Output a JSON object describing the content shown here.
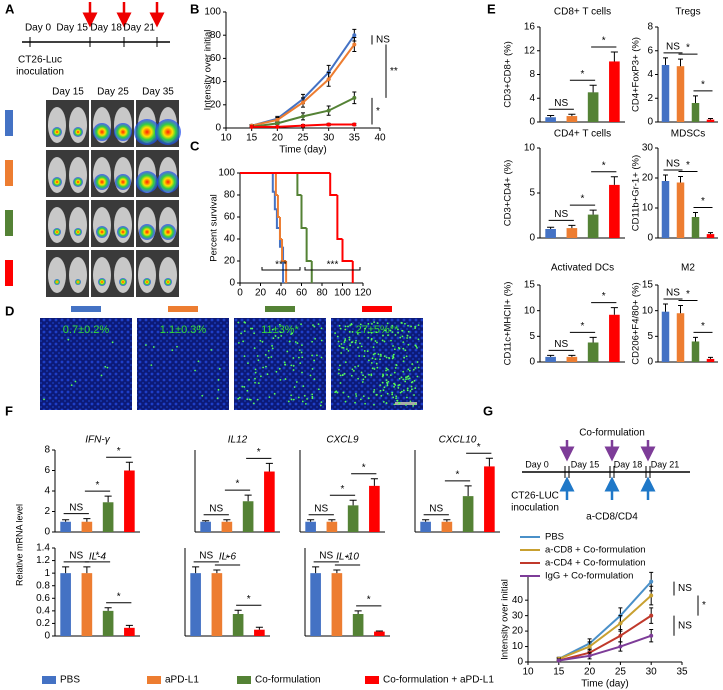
{
  "panel_labels": [
    "A",
    "B",
    "C",
    "D",
    "E",
    "F",
    "G"
  ],
  "timeline_a": {
    "days": [
      "Day 0",
      "Day 15",
      "Day 18",
      "Day 21"
    ],
    "event": [
      "CT26-Luc",
      "inoculation"
    ]
  },
  "imaging_days": [
    "Day 15",
    "Day 25",
    "Day 35"
  ],
  "staining_labels": [
    "0.7±0.2%",
    "1.1±0.3%",
    "11±3%*",
    "27±5%**"
  ],
  "legend": [
    {
      "name": "PBS",
      "color": "#4472c4"
    },
    {
      "name": "aPD-L1",
      "color": "#ed7d31"
    },
    {
      "name": "Co-formulation",
      "color": "#548235"
    },
    {
      "name": "Co-formulation + aPD-L1",
      "color": "#ff0000"
    }
  ],
  "timeline_g": {
    "treatment": "Co-formulation",
    "days": [
      "Day 0",
      "Day 15",
      "Day 18",
      "Day 21"
    ],
    "event": [
      "CT26-LUC",
      "inoculation"
    ],
    "depletion": "a-CD8/CD4"
  },
  "f_ylabel": "Relative mRNA level",
  "chart_data": [
    {
      "type": "line",
      "xlabel": "Time (day)",
      "ylabel": "Intensity over initial",
      "x": [
        15,
        20,
        25,
        30,
        35
      ],
      "xlim": [
        10,
        40
      ],
      "xticks": [
        10,
        15,
        20,
        25,
        30,
        35,
        40
      ],
      "ylim": [
        0,
        100
      ],
      "yticks": [
        0,
        20,
        40,
        60,
        80,
        100
      ],
      "series": [
        {
          "color": "#4472c4",
          "values": [
            2,
            8,
            25,
            48,
            80
          ],
          "errors": [
            1,
            2,
            4,
            6,
            5
          ]
        },
        {
          "color": "#ed7d31",
          "values": [
            2,
            7,
            22,
            42,
            72
          ],
          "errors": [
            1,
            2,
            4,
            6,
            6
          ]
        },
        {
          "color": "#548235",
          "values": [
            1,
            4,
            10,
            15,
            26
          ],
          "errors": [
            1,
            1,
            3,
            4,
            5
          ]
        },
        {
          "color": "#ff0000",
          "values": [
            1,
            1,
            2,
            3,
            3
          ],
          "errors": [
            0.5,
            0.5,
            1,
            1,
            1
          ]
        }
      ],
      "annotations": [
        "NS",
        "**",
        "*"
      ]
    },
    {
      "type": "step",
      "ylabel": "Percent survival",
      "xlim": [
        0,
        120
      ],
      "xticks": [
        0,
        20,
        40,
        60,
        80,
        100,
        120
      ],
      "ylim": [
        0,
        100
      ],
      "yticks": [
        0,
        20,
        40,
        60,
        80,
        100
      ],
      "series": [
        {
          "color": "#4472c4",
          "x": [
            0,
            32,
            34,
            36,
            39,
            42
          ],
          "values": [
            100,
            83,
            67,
            50,
            33,
            0
          ]
        },
        {
          "color": "#ed7d31",
          "x": [
            0,
            35,
            37,
            39,
            41,
            45
          ],
          "values": [
            100,
            80,
            60,
            40,
            20,
            0
          ]
        },
        {
          "color": "#548235",
          "x": [
            0,
            56,
            60,
            65,
            70
          ],
          "values": [
            100,
            80,
            50,
            20,
            0
          ]
        },
        {
          "color": "#ff0000",
          "x": [
            0,
            88,
            95,
            100,
            110
          ],
          "values": [
            100,
            80,
            40,
            20,
            0
          ]
        }
      ],
      "annotations": [
        "***",
        "***"
      ]
    },
    {
      "type": "bar",
      "title": "CD8+ T cells",
      "ylabel": "CD3+CD8+ (%)",
      "ylim": [
        0,
        16
      ],
      "yticks": [
        0,
        4,
        8,
        12,
        16
      ],
      "values": [
        0.8,
        1.0,
        5.0,
        10.2
      ],
      "errors": [
        0.3,
        0.3,
        1.2,
        1.6
      ],
      "annotations": [
        "NS",
        "*",
        "*"
      ]
    },
    {
      "type": "bar",
      "title": "Tregs",
      "ylabel": "CD4+FoxP3+ (%)",
      "ylim": [
        0,
        8
      ],
      "yticks": [
        0,
        2,
        4,
        6,
        8
      ],
      "values": [
        4.8,
        4.7,
        1.6,
        0.2
      ],
      "errors": [
        0.6,
        0.6,
        0.6,
        0.1
      ],
      "annotations": [
        "NS",
        "*",
        "*"
      ]
    },
    {
      "type": "bar",
      "title": "CD4+ T cells",
      "ylabel": "CD3+CD4+ (%)",
      "ylim": [
        0,
        10
      ],
      "yticks": [
        0,
        5,
        10
      ],
      "values": [
        1.0,
        1.1,
        2.6,
        5.9
      ],
      "errors": [
        0.2,
        0.3,
        0.5,
        0.9
      ],
      "annotations": [
        "NS",
        "*",
        "*"
      ]
    },
    {
      "type": "bar",
      "title": "MDSCs",
      "ylabel": "CD11b+Gr-1+ (%)",
      "ylim": [
        0,
        30
      ],
      "yticks": [
        0,
        10,
        20,
        30
      ],
      "values": [
        19,
        18.5,
        7,
        1.3
      ],
      "errors": [
        2,
        2,
        1.5,
        0.5
      ],
      "annotations": [
        "NS",
        "*",
        "*"
      ]
    },
    {
      "type": "bar",
      "title": "Activated DCs",
      "ylabel": "CD11c+MHCII+ (%)",
      "ylim": [
        0,
        15
      ],
      "yticks": [
        0,
        5,
        10,
        15
      ],
      "values": [
        1,
        1,
        3.8,
        9.2
      ],
      "errors": [
        0.3,
        0.3,
        1,
        1.4
      ],
      "annotations": [
        "NS",
        "*",
        "*"
      ]
    },
    {
      "type": "bar",
      "title": "M2",
      "ylabel": "CD206+F4/80+ (%)",
      "ylim": [
        0,
        15
      ],
      "yticks": [
        0,
        5,
        10,
        15
      ],
      "values": [
        9.8,
        9.5,
        4,
        0.6
      ],
      "errors": [
        1.5,
        1.5,
        0.8,
        0.3
      ],
      "annotations": [
        "NS",
        "*",
        "*"
      ]
    },
    {
      "type": "bar",
      "title": "IFN-γ",
      "ylim": [
        0,
        8
      ],
      "yticks": [
        0,
        2,
        4,
        6,
        8
      ],
      "values": [
        1,
        1,
        2.9,
        6
      ],
      "errors": [
        0.2,
        0.3,
        0.6,
        0.8
      ],
      "annotations": [
        "NS",
        "*",
        "*"
      ]
    },
    {
      "type": "bar",
      "title": "IL12",
      "ylim": [
        0,
        8
      ],
      "values": [
        1,
        1,
        3,
        5.9
      ],
      "errors": [
        0.1,
        0.2,
        0.6,
        0.8
      ],
      "annotations": [
        "NS",
        "*",
        "*"
      ]
    },
    {
      "type": "bar",
      "title": "CXCL9",
      "ylim": [
        0,
        8
      ],
      "values": [
        1,
        1,
        2.6,
        4.5
      ],
      "errors": [
        0.2,
        0.2,
        0.5,
        0.7
      ],
      "annotations": [
        "NS",
        "*",
        "*"
      ]
    },
    {
      "type": "bar",
      "title": "CXCL10",
      "ylim": [
        0,
        8
      ],
      "values": [
        1,
        1,
        3.5,
        6.4
      ],
      "errors": [
        0.2,
        0.2,
        1,
        0.8
      ],
      "annotations": [
        "NS",
        "*",
        "*"
      ]
    },
    {
      "type": "bar",
      "title": "IL-4",
      "ylim": [
        0,
        1.4
      ],
      "yticks": [
        0,
        0.2,
        0.4,
        0.6,
        0.8,
        1,
        1.2,
        1.4
      ],
      "values": [
        1,
        1,
        0.4,
        0.13
      ],
      "errors": [
        0.1,
        0.1,
        0.05,
        0.04
      ],
      "annotations": [
        "NS",
        "*",
        "*"
      ]
    },
    {
      "type": "bar",
      "title": "IL-6",
      "ylim": [
        0,
        1.4
      ],
      "values": [
        1,
        1,
        0.35,
        0.1
      ],
      "errors": [
        0.1,
        0.05,
        0.06,
        0.04
      ],
      "annotations": [
        "NS",
        "*",
        "*"
      ]
    },
    {
      "type": "bar",
      "title": "IL-10",
      "ylim": [
        0,
        1.4
      ],
      "values": [
        1,
        1,
        0.35,
        0.07
      ],
      "errors": [
        0.1,
        0.05,
        0.05,
        0.01
      ],
      "annotations": [
        "NS",
        "*",
        "*"
      ]
    },
    {
      "type": "line",
      "xlabel": "Time (day)",
      "ylabel": "Intensity over initial",
      "x": [
        15,
        20,
        25,
        30
      ],
      "xlim": [
        10,
        35
      ],
      "xticks": [
        10,
        15,
        20,
        25,
        30,
        35
      ],
      "ylim": [
        0,
        55
      ],
      "yticks": [
        0,
        10,
        20,
        30,
        40
      ],
      "series": [
        {
          "name": "PBS",
          "color": "#4a90c8",
          "values": [
            2,
            12,
            30,
            52
          ],
          "errors": [
            1,
            3,
            5,
            6
          ]
        },
        {
          "name": "a-CD8 + Co-formulation",
          "color": "#c8a030",
          "values": [
            2,
            10,
            25,
            43
          ],
          "errors": [
            1,
            3,
            5,
            6
          ]
        },
        {
          "name": "a-CD4 + Co-formulation",
          "color": "#c0392b",
          "values": [
            1,
            6,
            17,
            30
          ],
          "errors": [
            1,
            2,
            4,
            5
          ]
        },
        {
          "name": "IgG + Co-formulation",
          "color": "#7d3c98",
          "values": [
            1,
            4,
            10,
            17
          ],
          "errors": [
            1,
            2,
            3,
            4
          ]
        }
      ],
      "annotations": [
        "NS",
        "NS",
        "*"
      ]
    }
  ]
}
